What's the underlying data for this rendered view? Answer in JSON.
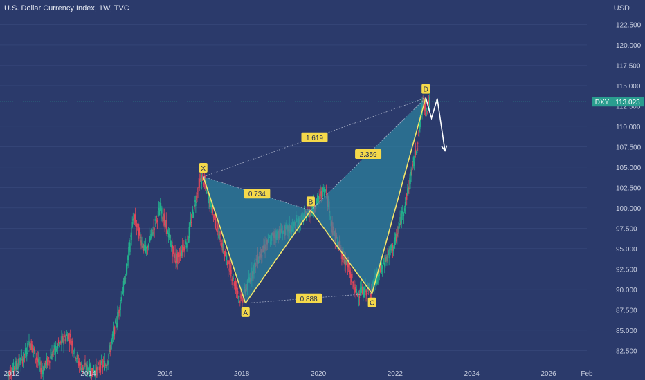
{
  "header": {
    "title": "U.S. Dollar Currency Index, 1W, TVC",
    "currency": "USD"
  },
  "price_tag": {
    "symbol": "DXY",
    "value": "113.023"
  },
  "colors": {
    "background": "#2b3a6b",
    "pattern_fill": "#2b8fa6",
    "pattern_line": "#f2e46a",
    "label_bg": "#f5d94a",
    "candle_up": "#22b08c",
    "candle_down": "#e0475a",
    "price_tag": "#2a9d8f",
    "arrow": "#ffffff"
  },
  "chart_data": {
    "type": "line",
    "title": "U.S. Dollar Currency Index, 1W, TVC",
    "xlim": [
      2011.7,
      2027.0
    ],
    "ylim": [
      81.0,
      125.5
    ],
    "x_ticks": [
      "2012",
      "2014",
      "2016",
      "2018",
      "2020",
      "2022",
      "2024",
      "2026",
      "Feb"
    ],
    "y_ticks": [
      "82.500",
      "85.000",
      "87.500",
      "90.000",
      "92.500",
      "95.000",
      "97.500",
      "100.000",
      "102.500",
      "105.000",
      "107.500",
      "110.000",
      "112.500",
      "115.000",
      "117.500",
      "120.000",
      "122.500"
    ],
    "current_price": 113.023,
    "series": [
      {
        "values": [
          [
            2011.9,
            79.5
          ],
          [
            2012.3,
            81.5
          ],
          [
            2012.5,
            83.5
          ],
          [
            2012.8,
            80.0
          ],
          [
            2013.2,
            83.0
          ],
          [
            2013.5,
            84.5
          ],
          [
            2013.8,
            80.5
          ],
          [
            2014.2,
            80.0
          ],
          [
            2014.5,
            81.0
          ],
          [
            2014.8,
            87.0
          ],
          [
            2015.0,
            92.0
          ],
          [
            2015.2,
            99.0
          ],
          [
            2015.5,
            94.5
          ],
          [
            2015.9,
            100.0
          ],
          [
            2016.3,
            93.5
          ],
          [
            2016.6,
            96.0
          ],
          [
            2016.9,
            103.0
          ],
          [
            2017.0,
            103.8
          ],
          [
            2017.4,
            97.0
          ],
          [
            2017.7,
            92.5
          ],
          [
            2018.0,
            88.5
          ],
          [
            2018.4,
            93.5
          ],
          [
            2018.8,
            96.5
          ],
          [
            2019.3,
            97.5
          ],
          [
            2019.8,
            99.5
          ],
          [
            2020.2,
            102.5
          ],
          [
            2020.4,
            97.0
          ],
          [
            2020.8,
            92.5
          ],
          [
            2021.0,
            89.5
          ],
          [
            2021.4,
            90.0
          ],
          [
            2021.8,
            94.0
          ],
          [
            2022.0,
            95.5
          ],
          [
            2022.3,
            101.0
          ],
          [
            2022.6,
            108.0
          ],
          [
            2022.75,
            113.5
          ],
          [
            2022.83,
            111.7
          ],
          [
            2022.9,
            113.0
          ]
        ]
      }
    ],
    "pattern": {
      "points": [
        {
          "label": "X",
          "x": 2017.0,
          "y": 103.8
        },
        {
          "label": "A",
          "x": 2018.1,
          "y": 88.3
        },
        {
          "label": "B",
          "x": 2019.8,
          "y": 99.7
        },
        {
          "label": "C",
          "x": 2021.4,
          "y": 89.5
        },
        {
          "label": "D",
          "x": 2022.8,
          "y": 113.5
        }
      ],
      "ratios": [
        {
          "label": "1.619",
          "from": "X",
          "to": "D"
        },
        {
          "label": "0.734",
          "from": "X",
          "to": "B"
        },
        {
          "label": "2.359",
          "from": "B",
          "to": "D"
        },
        {
          "label": "0.888",
          "from": "A",
          "to": "C"
        }
      ],
      "projection": [
        [
          2022.8,
          113.5
        ],
        [
          2022.95,
          111.0
        ],
        [
          2023.1,
          113.4
        ],
        [
          2023.3,
          107.0
        ]
      ]
    }
  }
}
